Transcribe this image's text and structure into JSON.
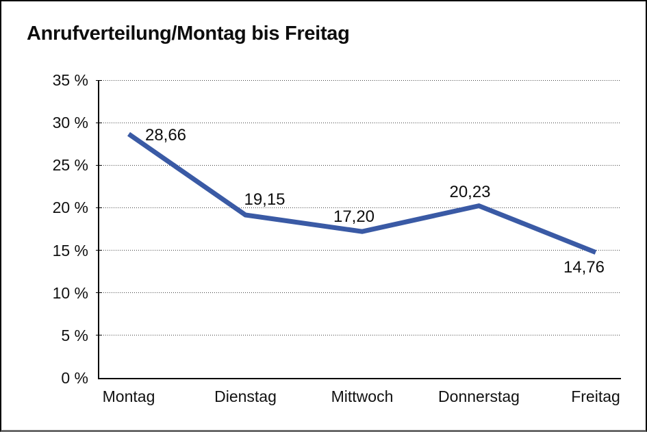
{
  "chart_data": {
    "type": "line",
    "title": "Anrufverteilung/Montag bis Freitag",
    "categories": [
      "Montag",
      "Dienstag",
      "Mittwoch",
      "Donnerstag",
      "Freitag"
    ],
    "values": [
      28.66,
      19.15,
      17.2,
      20.23,
      14.76
    ],
    "point_labels": [
      "28,66",
      "19,15",
      "17,20",
      "20,23",
      "14,76"
    ],
    "label_placements": [
      "right",
      "above-right",
      "above",
      "above",
      "below"
    ],
    "xlabel": "",
    "ylabel": "",
    "ylim": [
      0,
      35
    ],
    "ytick_step": 5,
    "ytick_labels": [
      "0 %",
      "5 %",
      "10 %",
      "15 %",
      "20 %",
      "25 %",
      "30 %",
      "35 %"
    ],
    "grid": "horizontal-dotted",
    "legend": "none",
    "line_color": "#3A5AA5",
    "gridline_color": "#3f3f3f",
    "axis_color": "#000000"
  }
}
